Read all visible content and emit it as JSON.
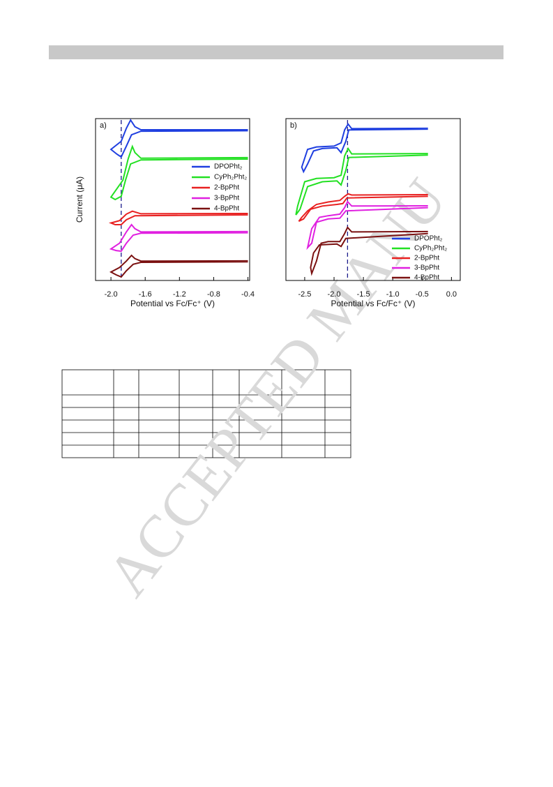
{
  "chart_data": [
    {
      "type": "line",
      "panel_label": "a)",
      "xlabel": "Potential vs Fc/Fc⁺ (V)",
      "ylabel": "Current (μA)",
      "xlim": [
        -2.18,
        -0.38
      ],
      "ylim": [
        0,
        10
      ],
      "xticks": [
        {
          "value": -2,
          "label": "-2.0"
        },
        -1.6,
        -1.2,
        -0.8,
        -0.4
      ],
      "reference_x": -1.88,
      "legend": "right",
      "series": [
        {
          "name": "DPOPht₂",
          "color": "#1f3fe0",
          "x": [
            -0.4,
            -1.65,
            -1.72,
            -1.77,
            -1.82,
            -1.88,
            -2.0,
            -1.93,
            -1.88,
            -1.82,
            -1.76,
            -1.65,
            -0.4
          ],
          "values": [
            9.31,
            9.31,
            9.5,
            9.91,
            9.4,
            8.6,
            8.1,
            7.8,
            7.63,
            8.3,
            9.0,
            9.22,
            9.25
          ]
        },
        {
          "name": "CyPh₂Pht₂",
          "color": "#22e022",
          "x": [
            -0.4,
            -1.65,
            -1.72,
            -1.75,
            -1.8,
            -1.86,
            -2.0,
            -1.95,
            -1.88,
            -1.83,
            -1.77,
            -1.65,
            -0.4
          ],
          "values": [
            7.59,
            7.55,
            7.9,
            8.28,
            7.5,
            6.2,
            5.15,
            5.0,
            5.2,
            6.2,
            7.2,
            7.45,
            7.5
          ]
        },
        {
          "name": "2-BpPht",
          "color": "#e82020",
          "x": [
            -0.4,
            -1.65,
            -1.75,
            -1.82,
            -1.9,
            -2.0,
            -1.95,
            -1.88,
            -1.82,
            -1.72,
            -0.4
          ],
          "values": [
            4.14,
            4.12,
            4.28,
            4.1,
            3.7,
            3.55,
            3.45,
            3.45,
            3.75,
            4.0,
            4.05
          ]
        },
        {
          "name": "3-BpPht",
          "color": "#e020e0",
          "x": [
            -0.4,
            -1.65,
            -1.72,
            -1.76,
            -1.82,
            -1.9,
            -2.0,
            -1.94,
            -1.88,
            -1.82,
            -1.74,
            -1.65,
            -0.4
          ],
          "values": [
            3.02,
            3.0,
            3.2,
            3.45,
            3.0,
            2.3,
            1.95,
            1.85,
            1.81,
            2.3,
            2.8,
            2.92,
            2.95
          ]
        },
        {
          "name": "4-BpPht",
          "color": "#7a1010",
          "x": [
            -0.4,
            -1.65,
            -1.72,
            -1.76,
            -1.82,
            -1.9,
            -2.0,
            -1.94,
            -1.88,
            -1.82,
            -1.74,
            -1.65,
            -0.4
          ],
          "values": [
            1.21,
            1.2,
            1.35,
            1.55,
            1.2,
            0.8,
            0.52,
            0.35,
            0.22,
            0.6,
            1.0,
            1.12,
            1.15
          ]
        }
      ]
    },
    {
      "type": "line",
      "panel_label": "b)",
      "xlabel": "Potential vs Fc/Fc⁺ (V)",
      "xlim": [
        -2.82,
        0.15
      ],
      "ylim": [
        0,
        10
      ],
      "xticks": [
        -2.5,
        {
          "value": -2,
          "label": "-2.0"
        },
        -1.5,
        {
          "value": -1,
          "label": "-1.0"
        },
        -0.5,
        {
          "value": 0,
          "label": "0.0"
        }
      ],
      "reference_x": -1.77,
      "legend": "lower right",
      "series": [
        {
          "name": "DPOPht₂",
          "color": "#1f3fe0",
          "x": [
            -0.4,
            -1.7,
            -1.76,
            -1.82,
            -1.88,
            -2.0,
            -2.3,
            -2.45,
            -2.55,
            -2.52,
            -2.45,
            -2.35,
            -2.2,
            -1.95,
            -1.88,
            -1.8,
            -1.75,
            -0.4
          ],
          "values": [
            9.4,
            9.38,
            9.66,
            9.3,
            8.5,
            8.3,
            8.25,
            8.1,
            7.0,
            6.72,
            7.2,
            8.0,
            8.15,
            8.2,
            7.9,
            8.6,
            9.3,
            9.35
          ]
        },
        {
          "name": "CyPh₂Pht₂",
          "color": "#22e022",
          "x": [
            -0.4,
            -1.7,
            -1.76,
            -1.82,
            -1.88,
            -2.0,
            -2.3,
            -2.5,
            -2.62,
            -2.65,
            -2.58,
            -2.45,
            -2.2,
            -1.95,
            -1.88,
            -1.8,
            -1.75,
            -0.4
          ],
          "values": [
            7.84,
            7.82,
            8.15,
            7.7,
            6.5,
            6.35,
            6.3,
            6.1,
            4.6,
            4.05,
            4.4,
            5.8,
            6.1,
            6.15,
            5.9,
            6.8,
            7.6,
            7.75
          ]
        },
        {
          "name": "2-BpPht",
          "color": "#e82020",
          "x": [
            -0.4,
            -1.7,
            -1.76,
            -1.82,
            -1.9,
            -2.1,
            -2.3,
            -2.45,
            -2.55,
            -2.6,
            -2.52,
            -2.4,
            -2.2,
            -1.95,
            -1.85,
            -1.78,
            -0.4
          ],
          "values": [
            5.3,
            5.28,
            5.35,
            5.2,
            4.95,
            4.85,
            4.7,
            4.3,
            3.9,
            3.66,
            3.8,
            4.4,
            4.6,
            4.7,
            4.75,
            5.1,
            5.2
          ]
        },
        {
          "name": "3-BpPht",
          "color": "#e020e0",
          "x": [
            -0.4,
            -1.7,
            -1.77,
            -1.82,
            -1.9,
            -2.1,
            -2.25,
            -2.38,
            -2.45,
            -2.38,
            -2.3,
            -2.1,
            -1.9,
            -1.8,
            -0.4
          ],
          "values": [
            4.61,
            4.6,
            4.87,
            4.5,
            4.1,
            4.0,
            3.9,
            3.2,
            2.03,
            2.3,
            3.6,
            3.8,
            3.85,
            4.3,
            4.5
          ]
        },
        {
          "name": "4-BpPht",
          "color": "#7a1010",
          "x": [
            -0.4,
            -1.7,
            -1.77,
            -1.82,
            -1.9,
            -2.1,
            -2.22,
            -2.3,
            -2.38,
            -2.4,
            -2.35,
            -2.25,
            -1.95,
            -1.88,
            -1.8,
            -0.4
          ],
          "values": [
            3.02,
            3.0,
            3.28,
            2.9,
            2.4,
            2.4,
            2.3,
            1.2,
            0.43,
            0.8,
            1.7,
            2.2,
            2.25,
            2.1,
            2.6,
            2.9
          ]
        }
      ]
    }
  ],
  "watermark": "ACCEPTED MANU"
}
